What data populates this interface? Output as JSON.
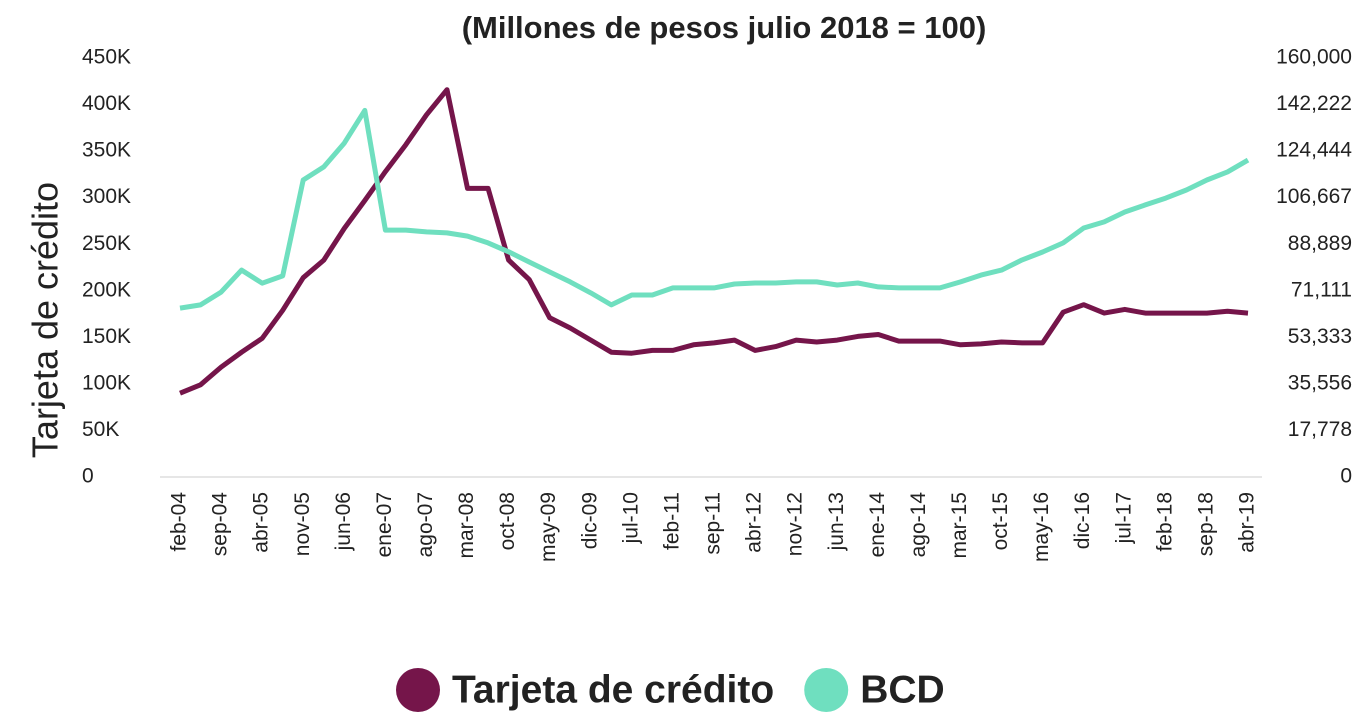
{
  "chart_data": {
    "type": "line",
    "title": "(Millones de pesos julio 2018 = 100)",
    "y_label": "Tarjeta de crédito",
    "categories": [
      "feb-04",
      null,
      "sep-04",
      null,
      "abr-05",
      null,
      "nov-05",
      null,
      "jun-06",
      null,
      "ene-07",
      null,
      "ago-07",
      null,
      "mar-08",
      null,
      "oct-08",
      null,
      "may-09",
      null,
      "dic-09",
      null,
      "jul-10",
      null,
      "feb-11",
      null,
      "sep-11",
      null,
      "abr-12",
      null,
      "nov-12",
      null,
      "jun-13",
      null,
      "ene-14",
      null,
      "ago-14",
      null,
      "mar-15",
      null,
      "oct-15",
      null,
      "may-16",
      null,
      "dic-16",
      null,
      "jul-17",
      null,
      "feb-18",
      null,
      "sep-18",
      null,
      "abr-19"
    ],
    "series": [
      {
        "name": "Tarjeta de crédito",
        "color": "#75154a",
        "axis": "y",
        "values": [
          90000,
          99000,
          118000,
          134000,
          149000,
          179000,
          214000,
          233000,
          267000,
          297000,
          328000,
          357000,
          389000,
          416000,
          310000,
          310000,
          233000,
          212000,
          171000,
          160000,
          147000,
          134000,
          133000,
          136000,
          136000,
          142000,
          144000,
          147000,
          136000,
          140000,
          147000,
          145000,
          147000,
          151000,
          153000,
          146000,
          146000,
          146000,
          142000,
          143000,
          145000,
          144000,
          144000,
          177000,
          185000,
          176000,
          180000,
          176000,
          176000,
          176000,
          176000,
          178000,
          176000
        ]
      },
      {
        "name": "BCD",
        "color": "#6fdfbf",
        "axis": "y2",
        "values": [
          64500,
          65700,
          70600,
          79000,
          74000,
          76800,
          113400,
          118400,
          127500,
          140000,
          94300,
          94300,
          93600,
          93200,
          92000,
          89400,
          86000,
          82100,
          78300,
          74500,
          70300,
          65700,
          69500,
          69500,
          72200,
          72200,
          72200,
          73700,
          74100,
          74100,
          74500,
          74500,
          73300,
          74100,
          72600,
          72200,
          72200,
          72200,
          74500,
          77100,
          79000,
          82900,
          85900,
          89400,
          95100,
          97400,
          101200,
          103900,
          106500,
          109600,
          113400,
          116500,
          121000
        ]
      }
    ],
    "ylim": [
      0,
      450000
    ],
    "yticks": [
      0,
      {
        "value": 50000,
        "label": "50K"
      },
      {
        "value": 100000,
        "label": "100K"
      },
      {
        "value": 150000,
        "label": "150K"
      },
      {
        "value": 200000,
        "label": "200K"
      },
      {
        "value": 250000,
        "label": "250K"
      },
      {
        "value": 300000,
        "label": "300K"
      },
      {
        "value": 350000,
        "label": "350K"
      },
      {
        "value": 400000,
        "label": "400K"
      },
      {
        "value": 450000,
        "label": "450K"
      }
    ],
    "y2lim": [
      0,
      160000
    ],
    "y2ticks": [
      0,
      {
        "value": 17778,
        "label": "17,778"
      },
      {
        "value": 35556,
        "label": "35,556"
      },
      {
        "value": 53333,
        "label": "53,333"
      },
      {
        "value": 71111,
        "label": "71,111"
      },
      {
        "value": 88889,
        "label": "88,889"
      },
      {
        "value": 106667,
        "label": "106,667"
      },
      {
        "value": 124444,
        "label": "124,444"
      },
      {
        "value": 142222,
        "label": "142,222"
      },
      {
        "value": 160000,
        "label": "160,000"
      }
    ],
    "legend": "bottom"
  }
}
